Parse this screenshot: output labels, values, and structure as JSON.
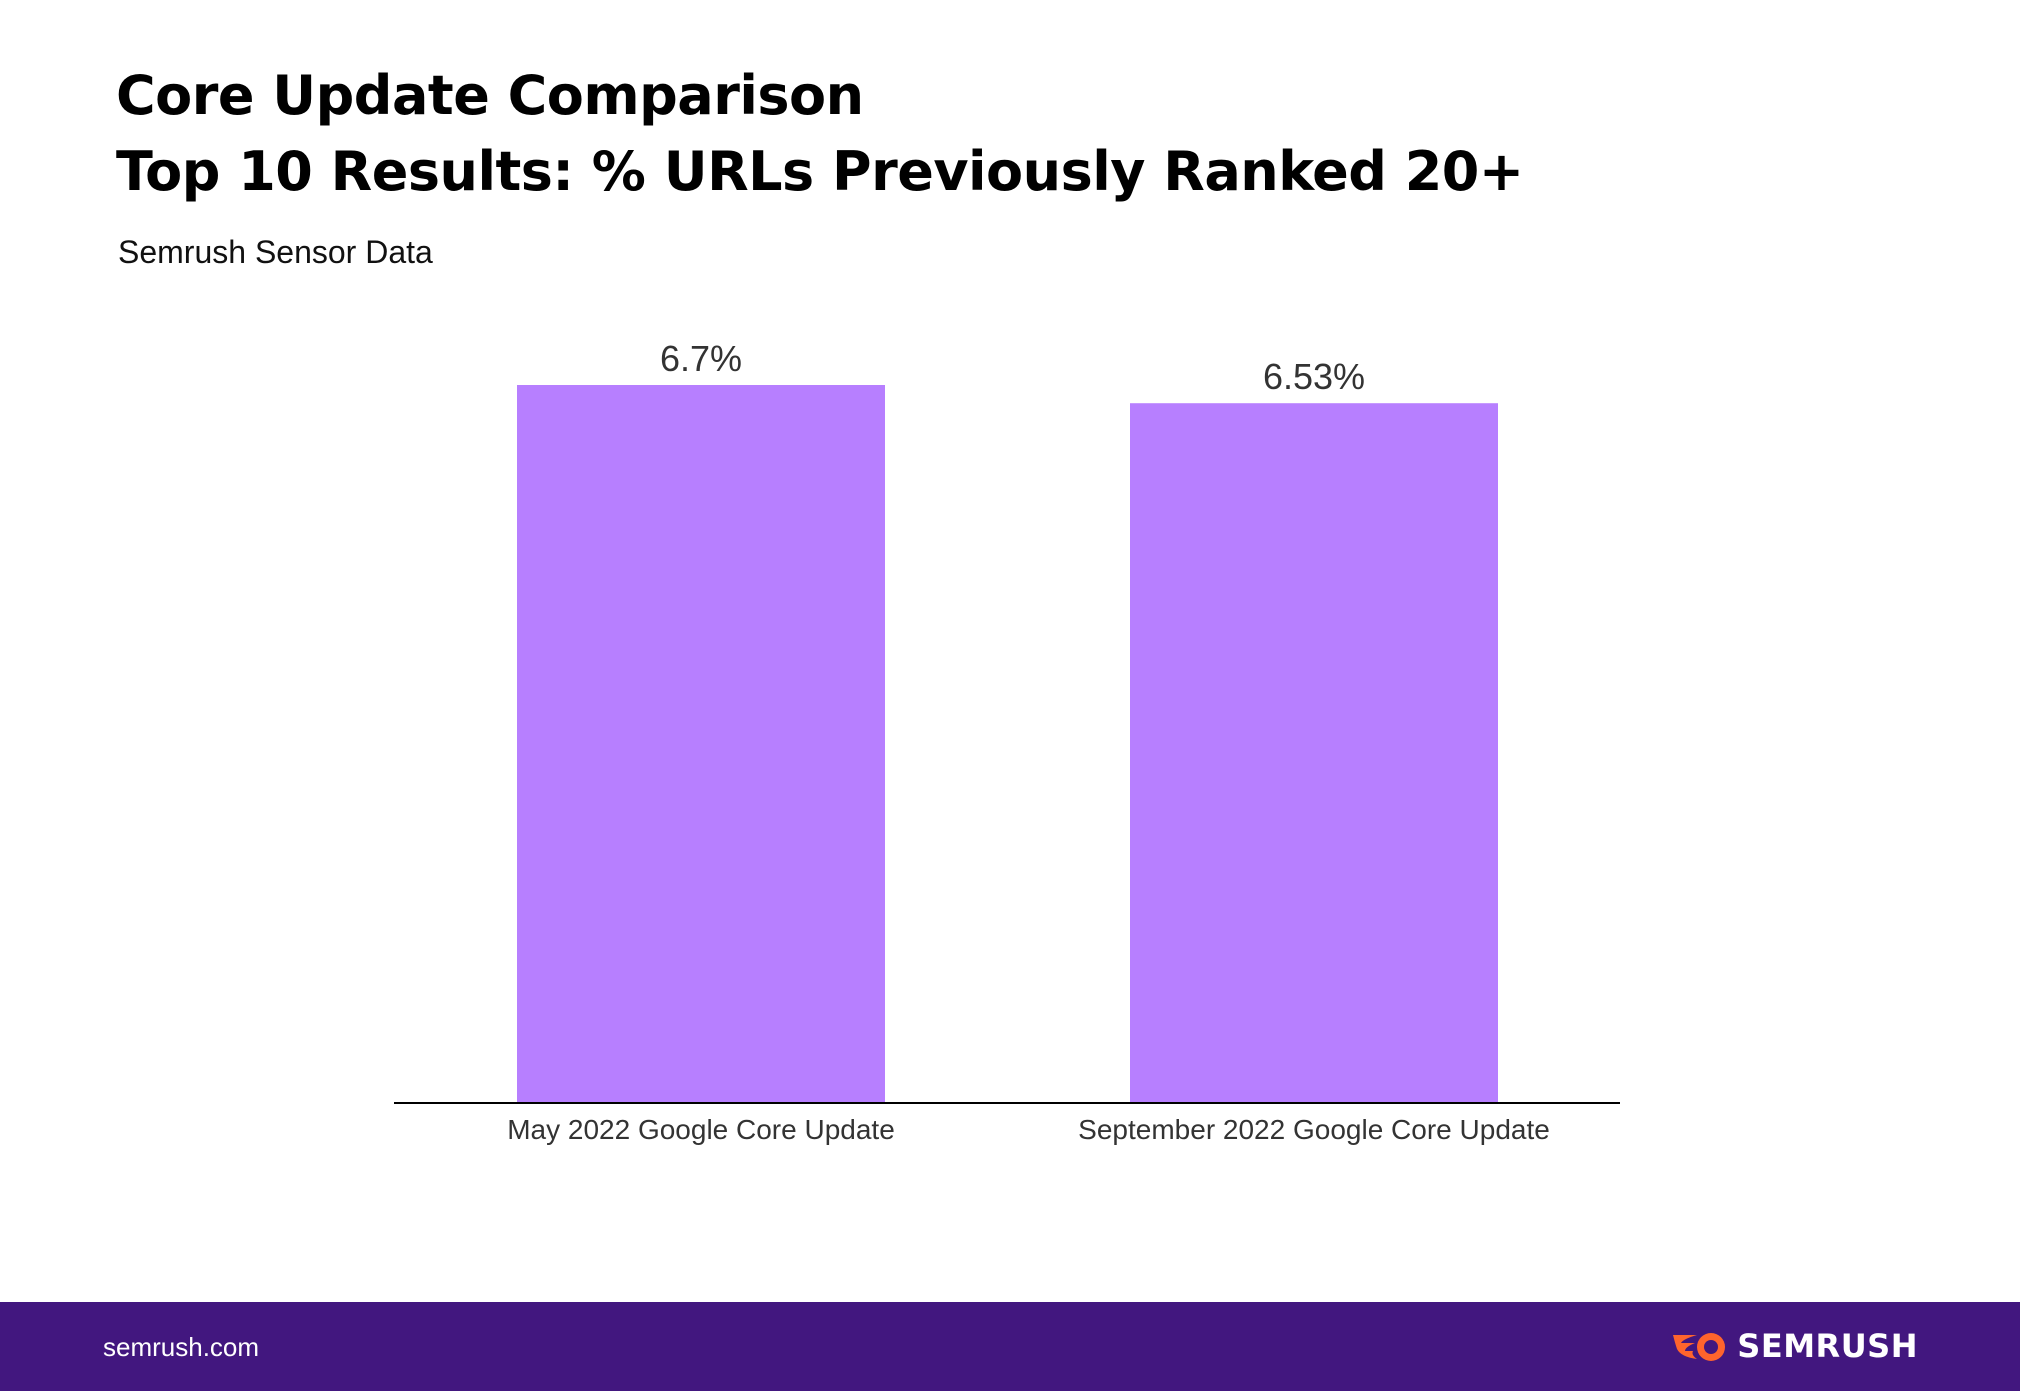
{
  "header": {
    "title_line1": "Core Update Comparison",
    "title_line2": "Top 10 Results: % URLs Previously Ranked 20+",
    "subtitle": "Semrush Sensor Data"
  },
  "footer": {
    "url": "semrush.com",
    "brand": "SEMRUSH",
    "logo_icon": "semrush-flame-icon"
  },
  "colors": {
    "bar": "#b77fff",
    "footer_bg": "#42177f",
    "logo_accent": "#ff642d"
  },
  "chart_data": {
    "type": "bar",
    "categories": [
      "May 2022 Google Core Update",
      "September 2022 Google Core Update"
    ],
    "values": [
      6.7,
      6.53
    ],
    "value_labels": [
      "6.7%",
      "6.53%"
    ],
    "title": "Core Update Comparison\nTop 10 Results: % URLs Previously Ranked 20+",
    "subtitle": "Semrush Sensor Data",
    "xlabel": "",
    "ylabel": "",
    "ylim": [
      0,
      6.7
    ],
    "grid": false,
    "legend": "none"
  }
}
